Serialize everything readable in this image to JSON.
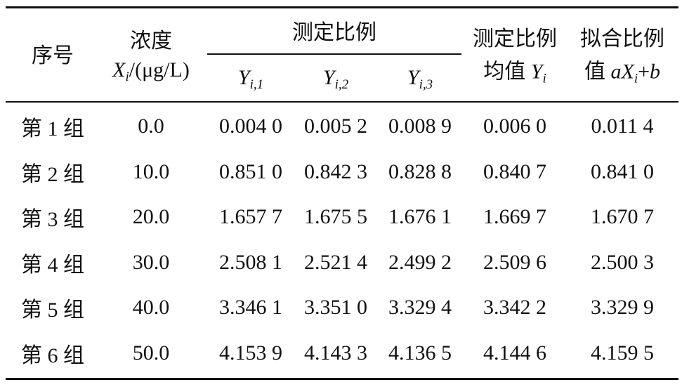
{
  "header": {
    "index": "序号",
    "conc": {
      "line1": "浓度",
      "var": "X",
      "sub": "i",
      "unit": "/(μg/L)"
    },
    "measured": "测定比例",
    "samples": [
      {
        "var": "Y",
        "sub": "i,1"
      },
      {
        "var": "Y",
        "sub": "i,2"
      },
      {
        "var": "Y",
        "sub": "i,3"
      }
    ],
    "mean": {
      "line1": "测定比例",
      "line2": "均值 ",
      "var": "Y",
      "sub": "i"
    },
    "fit": {
      "line1": "拟合比例",
      "line2": "值 ",
      "coef": "a",
      "var": "X",
      "sub": "i",
      "op": "+",
      "const": "b"
    }
  },
  "table": {
    "rows": [
      [
        "第 1 组",
        "0.0",
        "0.004 0",
        "0.005 2",
        "0.008 9",
        "0.006 0",
        "0.011 4"
      ],
      [
        "第 2 组",
        "10.0",
        "0.851 0",
        "0.842 3",
        "0.828 8",
        "0.840 7",
        "0.841 0"
      ],
      [
        "第 3 组",
        "20.0",
        "1.657 7",
        "1.675 5",
        "1.676 1",
        "1.669 7",
        "1.670 7"
      ],
      [
        "第 4 组",
        "30.0",
        "2.508 1",
        "2.521 4",
        "2.499 2",
        "2.509 6",
        "2.500 3"
      ],
      [
        "第 5 组",
        "40.0",
        "3.346 1",
        "3.351 0",
        "3.329 4",
        "3.342 2",
        "3.329 9"
      ],
      [
        "第 6 组",
        "50.0",
        "4.153 9",
        "4.143 3",
        "4.136 5",
        "4.144 6",
        "4.159 5"
      ]
    ]
  }
}
